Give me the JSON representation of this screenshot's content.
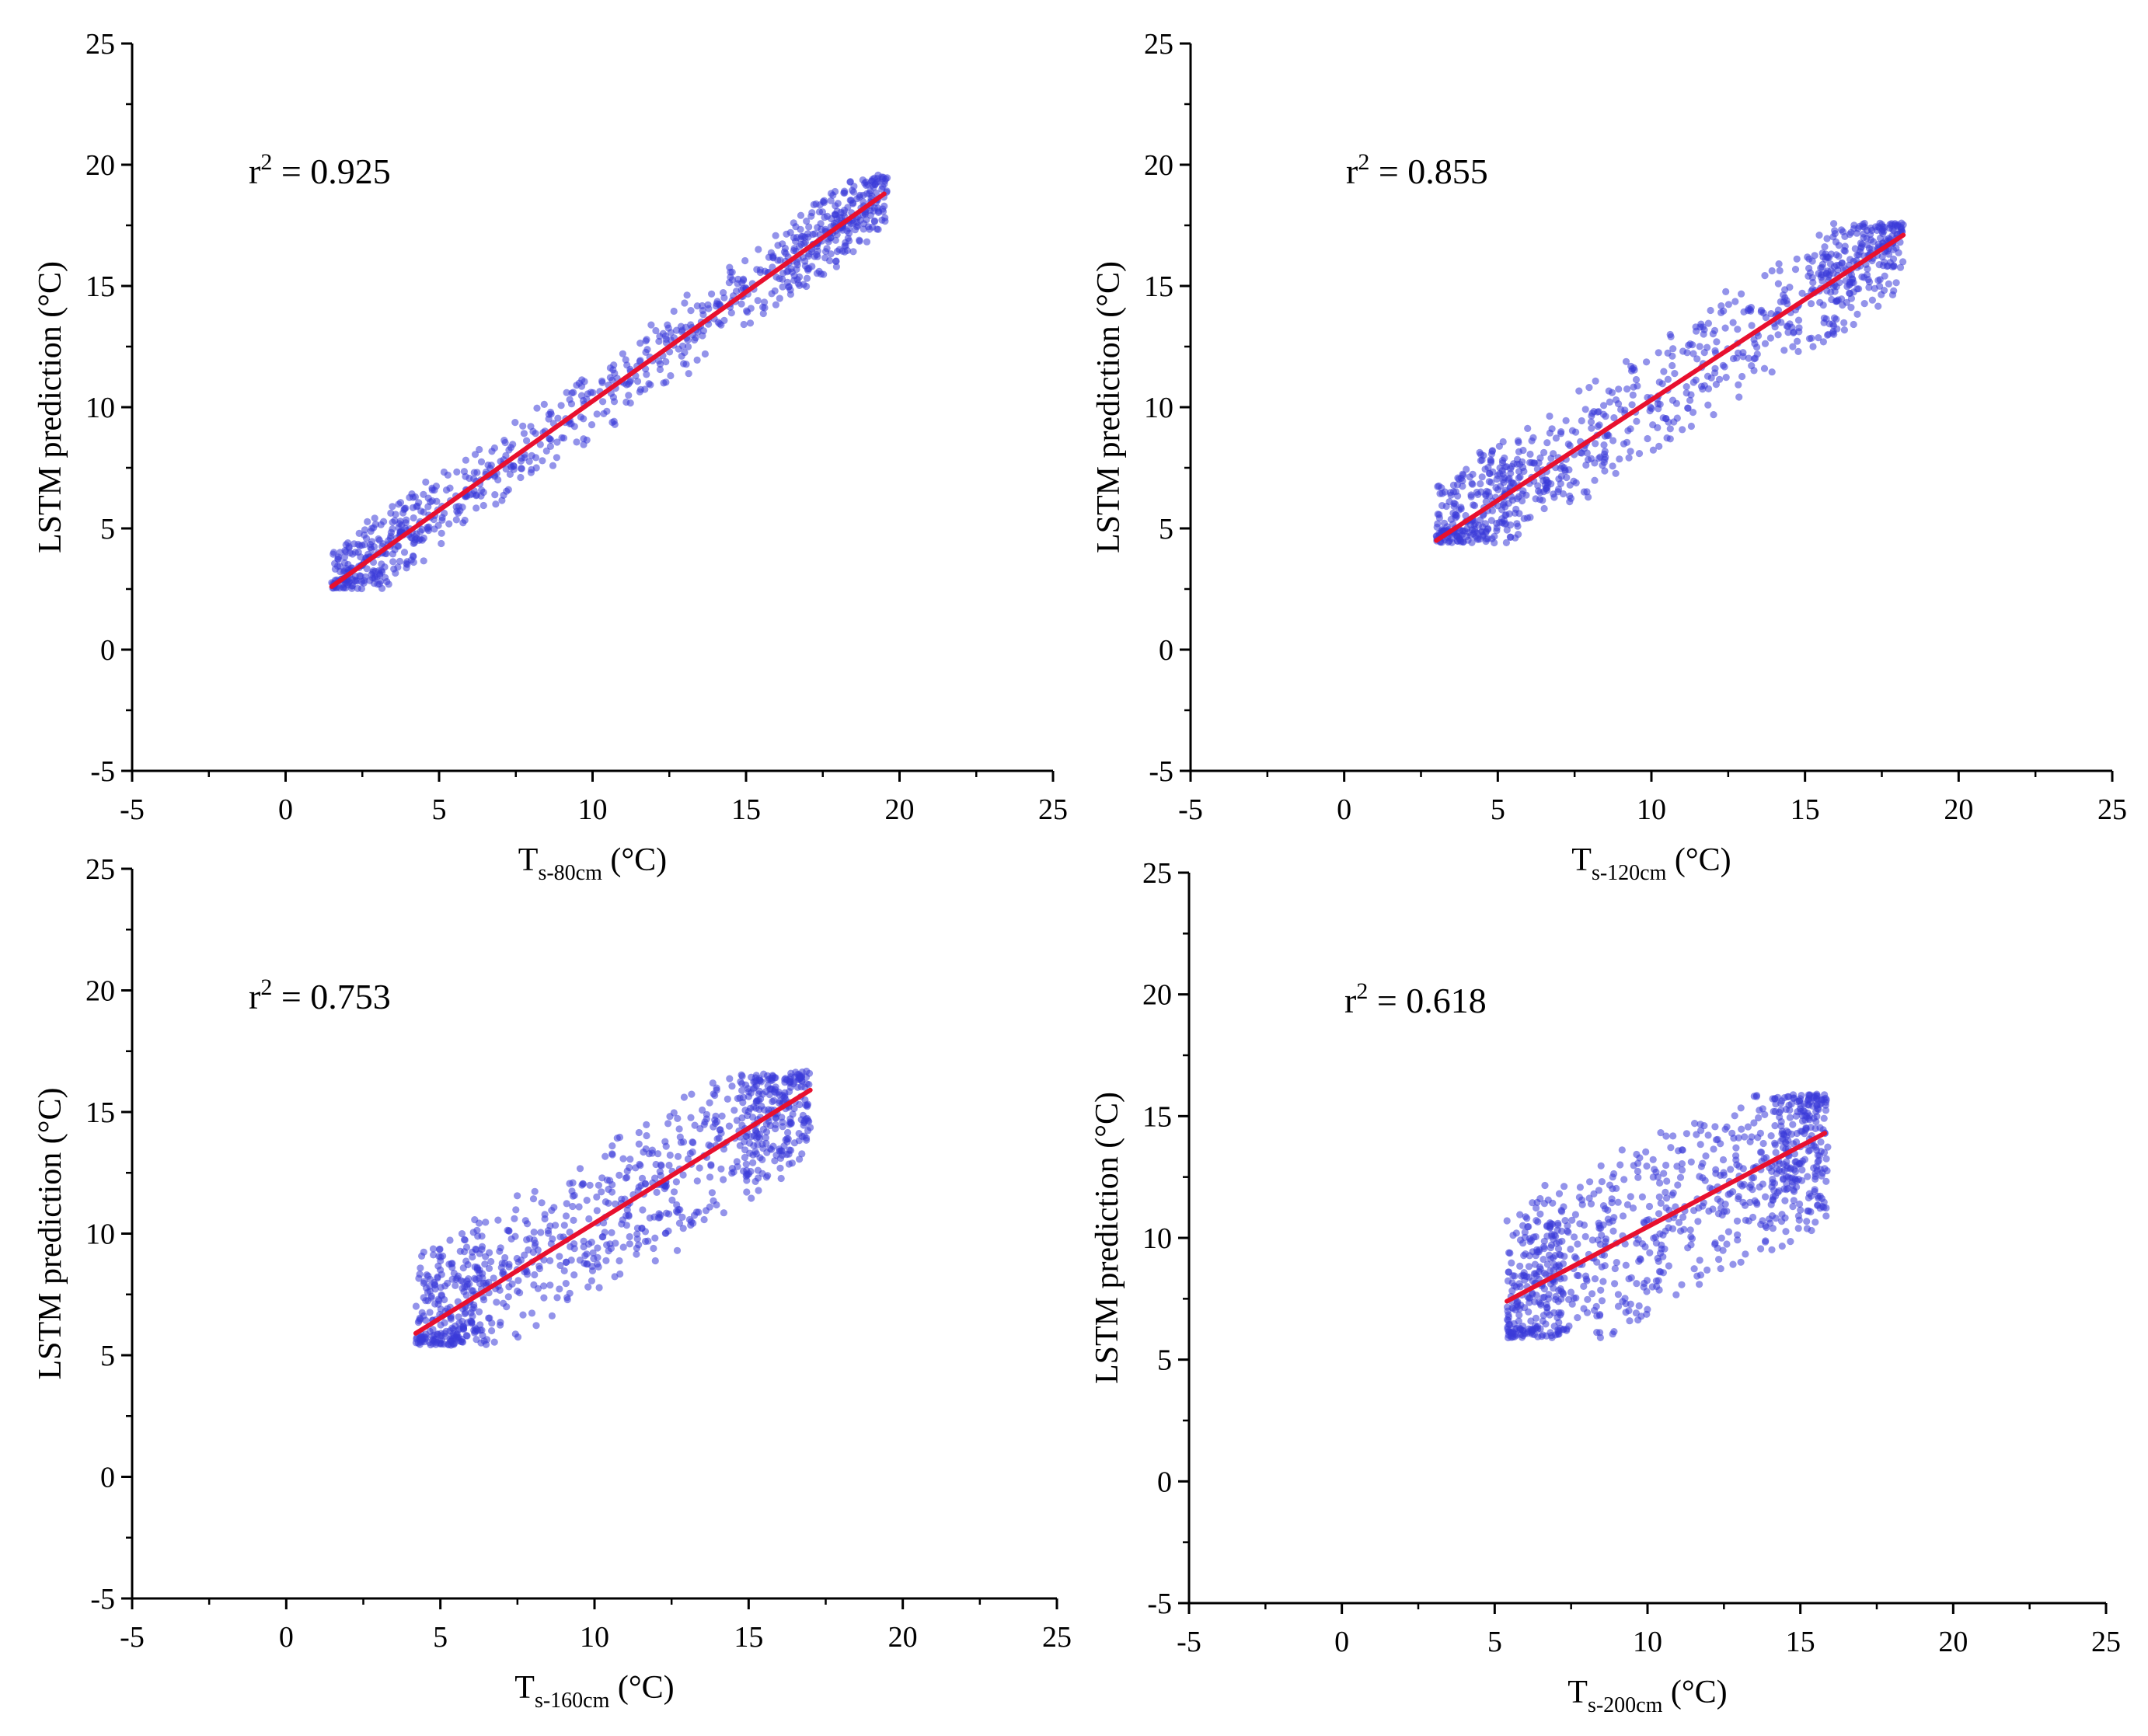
{
  "chart_data": [
    {
      "type": "scatter",
      "panel": "top-left",
      "xlabel_main": "T",
      "xlabel_sub": "s-80cm",
      "xlabel_unit": " (°C)",
      "ylabel": "LSTM prediction  (°C)",
      "xlim": [
        -5,
        25
      ],
      "ylim": [
        -5,
        25
      ],
      "xticks": [
        -5,
        0,
        5,
        10,
        15,
        20,
        25
      ],
      "yticks": [
        -5,
        0,
        5,
        10,
        15,
        20,
        25
      ],
      "r2_label": "r",
      "r2_sup": "2",
      "r2_value": " = 0.925",
      "fit_line": {
        "x": [
          1.5,
          19.5
        ],
        "y": [
          2.6,
          18.8
        ]
      },
      "scatter_range": {
        "x": [
          1.5,
          19.6
        ],
        "y": [
          2.5,
          19.6
        ]
      },
      "series_color": "#3a3ad8",
      "fit_color": "#e8102e"
    },
    {
      "type": "scatter",
      "panel": "top-right",
      "xlabel_main": "T",
      "xlabel_sub": "s-120cm",
      "xlabel_unit": " (°C)",
      "ylabel": "LSTM prediction  (°C)",
      "xlim": [
        -5,
        25
      ],
      "ylim": [
        -5,
        25
      ],
      "xticks": [
        -5,
        0,
        5,
        10,
        15,
        20,
        25
      ],
      "yticks": [
        -5,
        0,
        5,
        10,
        15,
        20,
        25
      ],
      "r2_label": "r",
      "r2_sup": "2",
      "r2_value": " = 0.855",
      "fit_line": {
        "x": [
          3.0,
          18.2
        ],
        "y": [
          4.5,
          17.1
        ]
      },
      "scatter_range": {
        "x": [
          3.0,
          18.2
        ],
        "y": [
          4.4,
          17.6
        ]
      },
      "series_color": "#3a3ad8",
      "fit_color": "#e8102e"
    },
    {
      "type": "scatter",
      "panel": "bottom-left",
      "xlabel_main": "T",
      "xlabel_sub": "s-160cm",
      "xlabel_unit": " (°C)",
      "ylabel": "LSTM prediction  (°C)",
      "xlim": [
        -5,
        25
      ],
      "ylim": [
        -5,
        25
      ],
      "xticks": [
        -5,
        0,
        5,
        10,
        15,
        20,
        25
      ],
      "yticks": [
        -5,
        0,
        5,
        10,
        15,
        20,
        25
      ],
      "r2_label": "r",
      "r2_sup": "2",
      "r2_value": " = 0.753",
      "fit_line": {
        "x": [
          4.2,
          17.0
        ],
        "y": [
          5.9,
          15.9
        ]
      },
      "scatter_range": {
        "x": [
          4.2,
          17.0
        ],
        "y": [
          5.4,
          16.7
        ]
      },
      "series_color": "#3a3ad8",
      "fit_color": "#e8102e"
    },
    {
      "type": "scatter",
      "panel": "bottom-right",
      "xlabel_main": "T",
      "xlabel_sub": "s-200cm",
      "xlabel_unit": " (°C)",
      "ylabel": "LSTM prediction  (°C)",
      "xlim": [
        -5,
        25
      ],
      "ylim": [
        -5,
        25
      ],
      "xticks": [
        -5,
        0,
        5,
        10,
        15,
        20,
        25
      ],
      "yticks": [
        -5,
        0,
        5,
        10,
        15,
        20,
        25
      ],
      "r2_label": "r",
      "r2_sup": "2",
      "r2_value": " = 0.618",
      "fit_line": {
        "x": [
          5.4,
          15.8
        ],
        "y": [
          7.4,
          14.3
        ]
      },
      "scatter_range": {
        "x": [
          5.4,
          15.9
        ],
        "y": [
          5.9,
          15.9
        ]
      },
      "series_color": "#3a3ad8",
      "fit_color": "#e8102e"
    }
  ]
}
